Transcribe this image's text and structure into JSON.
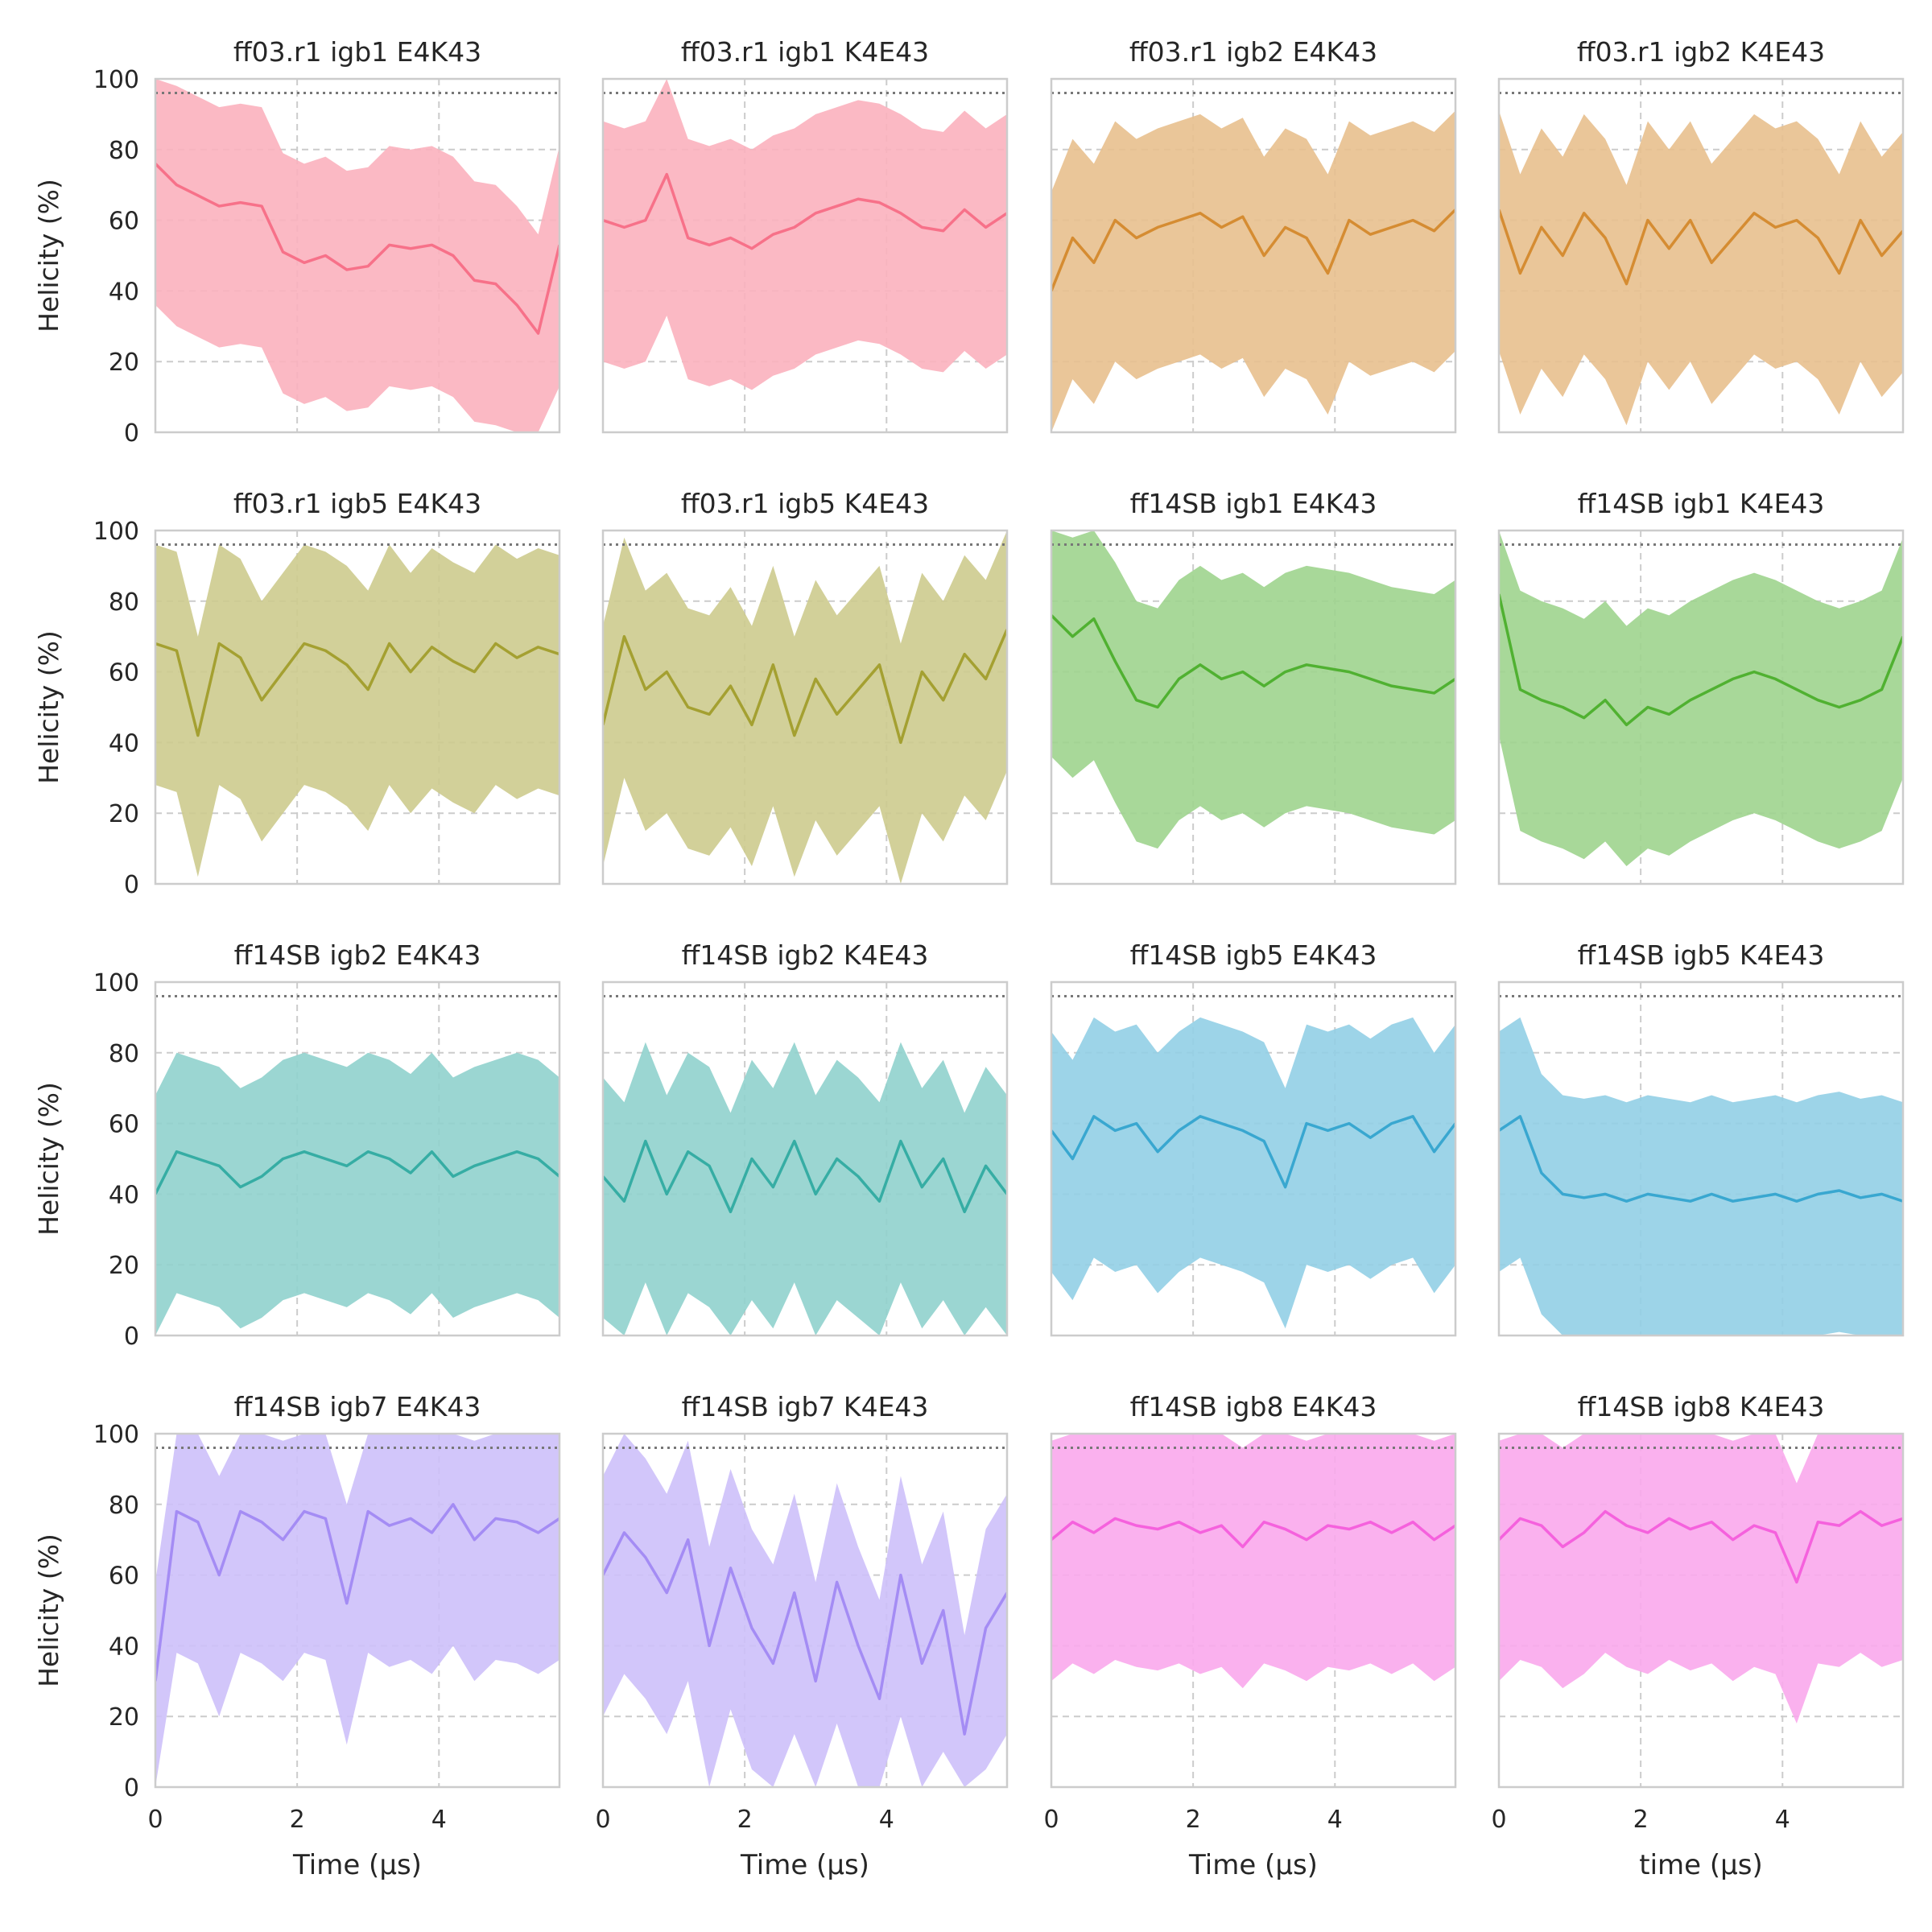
{
  "figure": {
    "ylabel": "Helicity (%)",
    "xlabel": "Time (μs)",
    "xlabel_last": "time (μs)",
    "reference_line": 96,
    "grid": true,
    "xlim": [
      0,
      5.7
    ],
    "ylim": [
      0,
      100
    ],
    "xticks": [
      "0",
      "2",
      "4"
    ],
    "yticks": [
      "0",
      "20",
      "40",
      "60",
      "80",
      "100"
    ]
  },
  "chart_data": [
    {
      "type": "line",
      "title": "ff03.r1 igb1 E4K43",
      "color": "#f77189",
      "xlabel": "",
      "ylabel": "Helicity (%)",
      "xlim": [
        0,
        5.7
      ],
      "ylim": [
        0,
        100
      ],
      "x": [
        0,
        0.3,
        0.6,
        0.9,
        1.2,
        1.5,
        1.8,
        2.1,
        2.4,
        2.7,
        3.0,
        3.3,
        3.6,
        3.9,
        4.2,
        4.5,
        4.8,
        5.1,
        5.4,
        5.7
      ],
      "series": [
        {
          "values": [
            76,
            70,
            67,
            64,
            65,
            64,
            51,
            48,
            50,
            46,
            47,
            53,
            52,
            53,
            50,
            43,
            42,
            36,
            28,
            53
          ]
        }
      ]
    },
    {
      "type": "line",
      "title": "ff03.r1 igb1 K4E43",
      "color": "#f77189",
      "xlabel": "",
      "ylabel": "",
      "xlim": [
        0,
        5.7
      ],
      "ylim": [
        0,
        100
      ],
      "x": [
        0,
        0.3,
        0.6,
        0.9,
        1.2,
        1.5,
        1.8,
        2.1,
        2.4,
        2.7,
        3.0,
        3.3,
        3.6,
        3.9,
        4.2,
        4.5,
        4.8,
        5.1,
        5.4,
        5.7
      ],
      "series": [
        {
          "values": [
            60,
            58,
            60,
            73,
            55,
            53,
            55,
            52,
            56,
            58,
            62,
            64,
            66,
            65,
            62,
            58,
            57,
            63,
            58,
            62
          ]
        }
      ]
    },
    {
      "type": "line",
      "title": "ff03.r1 igb2 E4K43",
      "color": "#d58c32",
      "xlabel": "",
      "ylabel": "",
      "xlim": [
        0,
        5.7
      ],
      "ylim": [
        0,
        100
      ],
      "x": [
        0,
        0.3,
        0.6,
        0.9,
        1.2,
        1.5,
        1.8,
        2.1,
        2.4,
        2.7,
        3.0,
        3.3,
        3.6,
        3.9,
        4.2,
        4.5,
        4.8,
        5.1,
        5.4,
        5.7
      ],
      "series": [
        {
          "values": [
            40,
            55,
            48,
            60,
            55,
            58,
            60,
            62,
            58,
            61,
            50,
            58,
            55,
            45,
            60,
            56,
            58,
            60,
            57,
            63
          ]
        }
      ]
    },
    {
      "type": "line",
      "title": "ff03.r1 igb2 K4E43",
      "color": "#d58c32",
      "xlabel": "",
      "ylabel": "",
      "xlim": [
        0,
        5.7
      ],
      "ylim": [
        0,
        100
      ],
      "x": [
        0,
        0.3,
        0.6,
        0.9,
        1.2,
        1.5,
        1.8,
        2.1,
        2.4,
        2.7,
        3.0,
        3.3,
        3.6,
        3.9,
        4.2,
        4.5,
        4.8,
        5.1,
        5.4,
        5.7
      ],
      "series": [
        {
          "values": [
            63,
            45,
            58,
            50,
            62,
            55,
            42,
            60,
            52,
            60,
            48,
            55,
            62,
            58,
            60,
            55,
            45,
            60,
            50,
            57
          ]
        }
      ]
    },
    {
      "type": "line",
      "title": "ff03.r1 igb5 E4K43",
      "color": "#a4a031",
      "xlabel": "",
      "ylabel": "Helicity (%)",
      "xlim": [
        0,
        5.7
      ],
      "ylim": [
        0,
        100
      ],
      "x": [
        0,
        0.3,
        0.6,
        0.9,
        1.2,
        1.5,
        1.8,
        2.1,
        2.4,
        2.7,
        3.0,
        3.3,
        3.6,
        3.9,
        4.2,
        4.5,
        4.8,
        5.1,
        5.4,
        5.7
      ],
      "series": [
        {
          "values": [
            68,
            66,
            42,
            68,
            64,
            52,
            60,
            68,
            66,
            62,
            55,
            68,
            60,
            67,
            63,
            60,
            68,
            64,
            67,
            65
          ]
        }
      ]
    },
    {
      "type": "line",
      "title": "ff03.r1 igb5 K4E43",
      "color": "#a4a031",
      "xlabel": "",
      "ylabel": "",
      "xlim": [
        0,
        5.7
      ],
      "ylim": [
        0,
        100
      ],
      "x": [
        0,
        0.3,
        0.6,
        0.9,
        1.2,
        1.5,
        1.8,
        2.1,
        2.4,
        2.7,
        3.0,
        3.3,
        3.6,
        3.9,
        4.2,
        4.5,
        4.8,
        5.1,
        5.4,
        5.7
      ],
      "series": [
        {
          "values": [
            45,
            70,
            55,
            60,
            50,
            48,
            56,
            45,
            62,
            42,
            58,
            48,
            55,
            62,
            40,
            60,
            52,
            65,
            58,
            72
          ]
        }
      ]
    },
    {
      "type": "line",
      "title": "ff14SB igb1 E4K43",
      "color": "#50b131",
      "xlabel": "",
      "ylabel": "",
      "xlim": [
        0,
        5.7
      ],
      "ylim": [
        0,
        100
      ],
      "x": [
        0,
        0.3,
        0.6,
        0.9,
        1.2,
        1.5,
        1.8,
        2.1,
        2.4,
        2.7,
        3.0,
        3.3,
        3.6,
        3.9,
        4.2,
        4.5,
        4.8,
        5.1,
        5.4,
        5.7
      ],
      "series": [
        {
          "values": [
            76,
            70,
            75,
            63,
            52,
            50,
            58,
            62,
            58,
            60,
            56,
            60,
            62,
            61,
            60,
            58,
            56,
            55,
            54,
            58
          ]
        }
      ]
    },
    {
      "type": "line",
      "title": "ff14SB igb1 K4E43",
      "color": "#50b131",
      "xlabel": "",
      "ylabel": "",
      "xlim": [
        0,
        5.7
      ],
      "ylim": [
        0,
        100
      ],
      "x": [
        0,
        0.3,
        0.6,
        0.9,
        1.2,
        1.5,
        1.8,
        2.1,
        2.4,
        2.7,
        3.0,
        3.3,
        3.6,
        3.9,
        4.2,
        4.5,
        4.8,
        5.1,
        5.4,
        5.7
      ],
      "series": [
        {
          "values": [
            82,
            55,
            52,
            50,
            47,
            52,
            45,
            50,
            48,
            52,
            55,
            58,
            60,
            58,
            55,
            52,
            50,
            52,
            55,
            70
          ]
        }
      ]
    },
    {
      "type": "line",
      "title": "ff14SB igb2 E4K43",
      "color": "#36ada4",
      "xlabel": "",
      "ylabel": "Helicity (%)",
      "xlim": [
        0,
        5.7
      ],
      "ylim": [
        0,
        100
      ],
      "x": [
        0,
        0.3,
        0.6,
        0.9,
        1.2,
        1.5,
        1.8,
        2.1,
        2.4,
        2.7,
        3.0,
        3.3,
        3.6,
        3.9,
        4.2,
        4.5,
        4.8,
        5.1,
        5.4,
        5.7
      ],
      "series": [
        {
          "values": [
            40,
            52,
            50,
            48,
            42,
            45,
            50,
            52,
            50,
            48,
            52,
            50,
            46,
            52,
            45,
            48,
            50,
            52,
            50,
            45
          ]
        }
      ]
    },
    {
      "type": "line",
      "title": "ff14SB igb2 K4E43",
      "color": "#36ada4",
      "xlabel": "",
      "ylabel": "",
      "xlim": [
        0,
        5.7
      ],
      "ylim": [
        0,
        100
      ],
      "x": [
        0,
        0.3,
        0.6,
        0.9,
        1.2,
        1.5,
        1.8,
        2.1,
        2.4,
        2.7,
        3.0,
        3.3,
        3.6,
        3.9,
        4.2,
        4.5,
        4.8,
        5.1,
        5.4,
        5.7
      ],
      "series": [
        {
          "values": [
            45,
            38,
            55,
            40,
            52,
            48,
            35,
            50,
            42,
            55,
            40,
            50,
            45,
            38,
            55,
            42,
            50,
            35,
            48,
            40
          ]
        }
      ]
    },
    {
      "type": "line",
      "title": "ff14SB igb5 E4K43",
      "color": "#39a7d0",
      "xlabel": "",
      "ylabel": "",
      "xlim": [
        0,
        5.7
      ],
      "ylim": [
        0,
        100
      ],
      "x": [
        0,
        0.3,
        0.6,
        0.9,
        1.2,
        1.5,
        1.8,
        2.1,
        2.4,
        2.7,
        3.0,
        3.3,
        3.6,
        3.9,
        4.2,
        4.5,
        4.8,
        5.1,
        5.4,
        5.7
      ],
      "series": [
        {
          "values": [
            58,
            50,
            62,
            58,
            60,
            52,
            58,
            62,
            60,
            58,
            55,
            42,
            60,
            58,
            60,
            56,
            60,
            62,
            52,
            60
          ]
        }
      ]
    },
    {
      "type": "line",
      "title": "ff14SB igb5 K4E43",
      "color": "#39a7d0",
      "xlabel": "",
      "ylabel": "",
      "xlim": [
        0,
        5.7
      ],
      "ylim": [
        0,
        100
      ],
      "x": [
        0,
        0.3,
        0.6,
        0.9,
        1.2,
        1.5,
        1.8,
        2.1,
        2.4,
        2.7,
        3.0,
        3.3,
        3.6,
        3.9,
        4.2,
        4.5,
        4.8,
        5.1,
        5.4,
        5.7
      ],
      "series": [
        {
          "values": [
            58,
            62,
            46,
            40,
            39,
            40,
            38,
            40,
            39,
            38,
            40,
            38,
            39,
            40,
            38,
            40,
            41,
            39,
            40,
            38
          ]
        }
      ]
    },
    {
      "type": "line",
      "title": "ff14SB igb7 E4K43",
      "color": "#a48cf4",
      "xlabel": "Time (μs)",
      "ylabel": "Helicity (%)",
      "xlim": [
        0,
        5.7
      ],
      "ylim": [
        0,
        100
      ],
      "x": [
        0,
        0.3,
        0.6,
        0.9,
        1.2,
        1.5,
        1.8,
        2.1,
        2.4,
        2.7,
        3.0,
        3.3,
        3.6,
        3.9,
        4.2,
        4.5,
        4.8,
        5.1,
        5.4,
        5.7
      ],
      "series": [
        {
          "values": [
            30,
            78,
            75,
            60,
            78,
            75,
            70,
            78,
            76,
            52,
            78,
            74,
            76,
            72,
            80,
            70,
            76,
            75,
            72,
            76
          ]
        }
      ]
    },
    {
      "type": "line",
      "title": "ff14SB igb7 K4E43",
      "color": "#a48cf4",
      "xlabel": "Time (μs)",
      "ylabel": "",
      "xlim": [
        0,
        5.7
      ],
      "ylim": [
        0,
        100
      ],
      "x": [
        0,
        0.3,
        0.6,
        0.9,
        1.2,
        1.5,
        1.8,
        2.1,
        2.4,
        2.7,
        3.0,
        3.3,
        3.6,
        3.9,
        4.2,
        4.5,
        4.8,
        5.1,
        5.4,
        5.7
      ],
      "series": [
        {
          "values": [
            60,
            72,
            65,
            55,
            70,
            40,
            62,
            45,
            35,
            55,
            30,
            58,
            40,
            25,
            60,
            35,
            50,
            15,
            45,
            55
          ]
        }
      ]
    },
    {
      "type": "line",
      "title": "ff14SB igb8 E4K43",
      "color": "#f561dd",
      "xlabel": "Time (μs)",
      "ylabel": "",
      "xlim": [
        0,
        5.7
      ],
      "ylim": [
        0,
        100
      ],
      "x": [
        0,
        0.3,
        0.6,
        0.9,
        1.2,
        1.5,
        1.8,
        2.1,
        2.4,
        2.7,
        3.0,
        3.3,
        3.6,
        3.9,
        4.2,
        4.5,
        4.8,
        5.1,
        5.4,
        5.7
      ],
      "series": [
        {
          "values": [
            70,
            75,
            72,
            76,
            74,
            73,
            75,
            72,
            74,
            68,
            75,
            73,
            70,
            74,
            73,
            75,
            72,
            75,
            70,
            74
          ]
        }
      ]
    },
    {
      "type": "line",
      "title": "ff14SB igb8 K4E43",
      "color": "#f561dd",
      "xlabel": "time (μs)",
      "ylabel": "",
      "xlim": [
        0,
        5.7
      ],
      "ylim": [
        0,
        100
      ],
      "x": [
        0,
        0.3,
        0.6,
        0.9,
        1.2,
        1.5,
        1.8,
        2.1,
        2.4,
        2.7,
        3.0,
        3.3,
        3.6,
        3.9,
        4.2,
        4.5,
        4.8,
        5.1,
        5.4,
        5.7
      ],
      "series": [
        {
          "values": [
            70,
            76,
            74,
            68,
            72,
            78,
            74,
            72,
            76,
            73,
            75,
            70,
            74,
            72,
            58,
            75,
            74,
            78,
            74,
            76
          ]
        }
      ]
    }
  ]
}
